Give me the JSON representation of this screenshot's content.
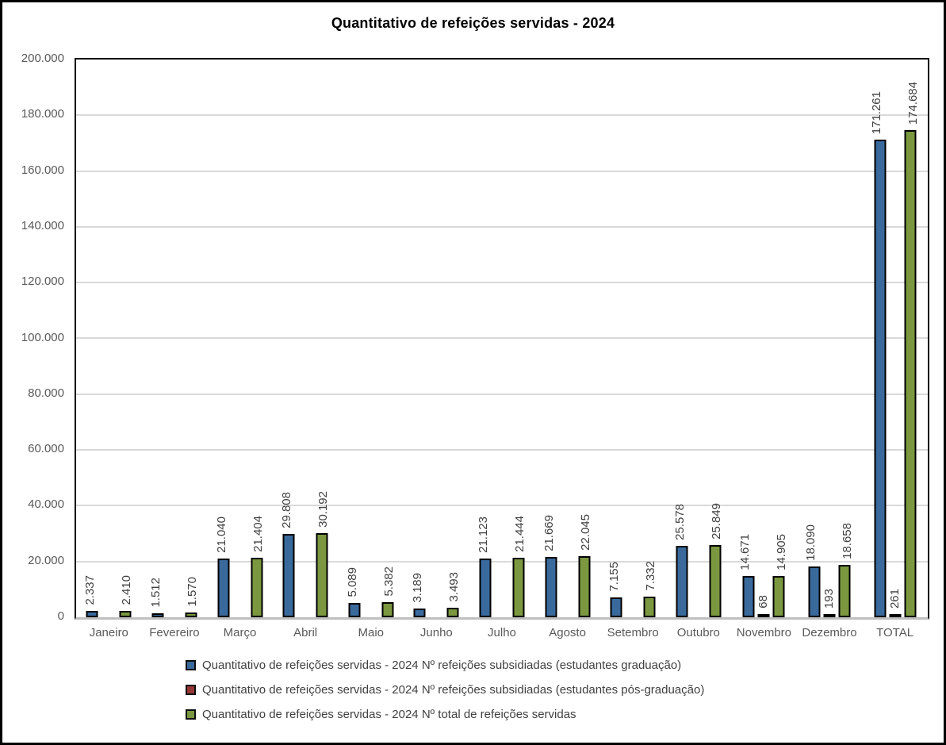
{
  "title": "Quantitativo de refeições servidas - 2024",
  "colors": {
    "series_graduacao": "#3a699c",
    "series_pos_graduacao": "#953735",
    "series_total": "#7b9841",
    "bar_border": "#000000",
    "gridline": "#d9d9d9",
    "axis_text": "#595959",
    "data_label_text": "#404040",
    "outer_border": "#000000",
    "axis_line_bottom": "#bfbfbf"
  },
  "chart_data": {
    "type": "bar",
    "title": "Quantitativo de refeições servidas - 2024",
    "xlabel": "",
    "ylabel": "",
    "ylim": [
      0,
      200000
    ],
    "ytick_step": 20000,
    "grid": true,
    "legend_position": "bottom-left",
    "data_label_orientation": "vertical",
    "y_ticks": [
      {
        "value": 0,
        "label": "0"
      },
      {
        "value": 20000,
        "label": "20.000"
      },
      {
        "value": 40000,
        "label": "40.000"
      },
      {
        "value": 60000,
        "label": "60.000"
      },
      {
        "value": 80000,
        "label": "80.000"
      },
      {
        "value": 100000,
        "label": "100.000"
      },
      {
        "value": 120000,
        "label": "120.000"
      },
      {
        "value": 140000,
        "label": "140.000"
      },
      {
        "value": 160000,
        "label": "160.000"
      },
      {
        "value": 180000,
        "label": "180.000"
      },
      {
        "value": 200000,
        "label": "200.000"
      }
    ],
    "categories": [
      "Janeiro",
      "Fevereiro",
      "Março",
      "Abril",
      "Maio",
      "Junho",
      "Julho",
      "Agosto",
      "Setembro",
      "Outubro",
      "Novembro",
      "Dezembro",
      "TOTAL"
    ],
    "series": [
      {
        "name": "Quantitativo de refeições servidas - 2024 Nº refeições subsidiadas (estudantes graduação)",
        "color": "#3a699c",
        "values": [
          2337,
          1512,
          21040,
          29808,
          5089,
          3189,
          21123,
          21669,
          7155,
          25578,
          14671,
          18090,
          171261
        ],
        "labels": [
          "2.337",
          "1.512",
          "21.040",
          "29.808",
          "5.089",
          "3.189",
          "21.123",
          "21.669",
          "7.155",
          "25.578",
          "14.671",
          "18.090",
          "171.261"
        ]
      },
      {
        "name": "Quantitativo de refeições servidas - 2024 Nº refeições subsidiadas (estudantes pós-graduação)",
        "color": "#953735",
        "values": [
          null,
          null,
          null,
          null,
          null,
          null,
          null,
          null,
          null,
          null,
          68,
          193,
          261
        ],
        "labels": [
          null,
          null,
          null,
          null,
          null,
          null,
          null,
          null,
          null,
          null,
          "68",
          "193",
          "261"
        ]
      },
      {
        "name": "Quantitativo de refeições servidas - 2024 Nº total de refeições servidas",
        "color": "#7b9841",
        "values": [
          2410,
          1570,
          21404,
          30192,
          5382,
          3493,
          21444,
          22045,
          7332,
          25849,
          14905,
          18658,
          174684
        ],
        "labels": [
          "2.410",
          "1.570",
          "21.404",
          "30.192",
          "5.382",
          "3.493",
          "21.444",
          "22.045",
          "7.332",
          "25.849",
          "14.905",
          "18.658",
          "174.684"
        ]
      }
    ]
  }
}
